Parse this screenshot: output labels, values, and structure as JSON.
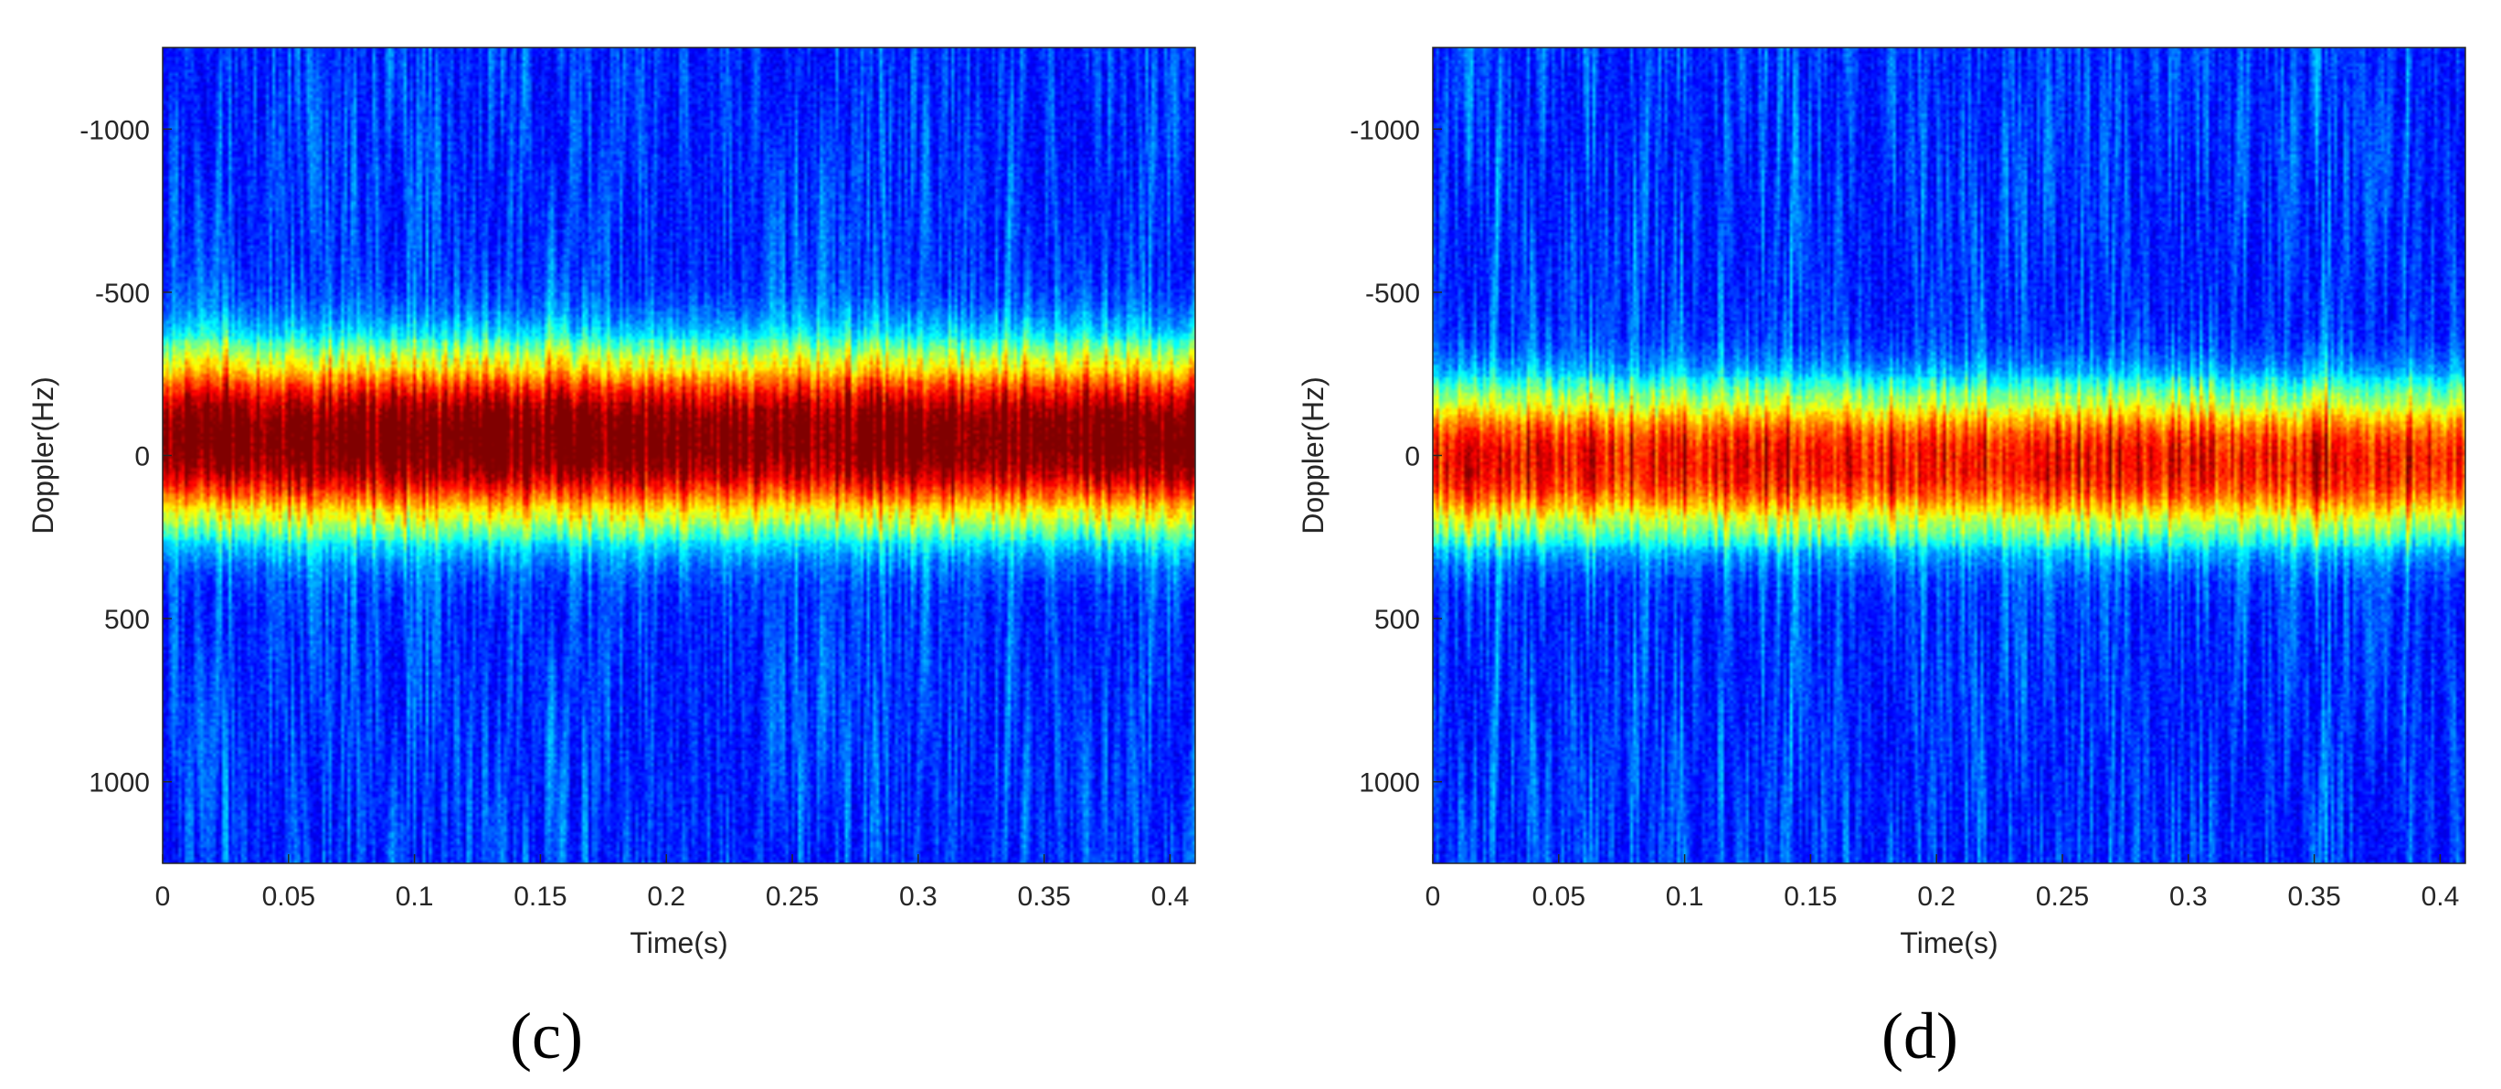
{
  "chart_data": [
    {
      "type": "heatmap",
      "panel_label": "(c)",
      "xlabel": "Time(s)",
      "ylabel": "Doppler(Hz)",
      "xlim": [
        0,
        0.41
      ],
      "ylim": [
        -1250,
        1250
      ],
      "y_reversed": true,
      "x_ticks": [
        0,
        0.05,
        0.1,
        0.15,
        0.2,
        0.25,
        0.3,
        0.35,
        0.4
      ],
      "x_tick_labels": [
        "0",
        "0.05",
        "0.1",
        "0.15",
        "0.2",
        "0.25",
        "0.3",
        "0.35",
        "0.4"
      ],
      "y_ticks": [
        -1000,
        -500,
        0,
        500,
        1000
      ],
      "y_tick_labels": [
        "-1000",
        "-500",
        "0",
        "500",
        "1000"
      ],
      "colormap": "jet",
      "band_center_hz": -50,
      "band_half_width_hz": 310,
      "band_peak_level": 0.95,
      "stripe_pattern": "vertical micro-Doppler striations"
    },
    {
      "type": "heatmap",
      "panel_label": "(d)",
      "xlabel": "Time(s)",
      "ylabel": "Doppler(Hz)",
      "xlim": [
        0,
        0.41
      ],
      "ylim": [
        -1250,
        1250
      ],
      "y_reversed": true,
      "x_ticks": [
        0,
        0.05,
        0.1,
        0.15,
        0.2,
        0.25,
        0.3,
        0.35,
        0.4
      ],
      "x_tick_labels": [
        "0",
        "0.05",
        "0.1",
        "0.15",
        "0.2",
        "0.25",
        "0.3",
        "0.35",
        "0.4"
      ],
      "y_ticks": [
        -1000,
        -500,
        0,
        500,
        1000
      ],
      "y_tick_labels": [
        "-1000",
        "-500",
        "0",
        "500",
        "1000"
      ],
      "colormap": "jet",
      "band_center_hz": 20,
      "band_half_width_hz": 260,
      "band_peak_level": 0.78,
      "stripe_pattern": "vertical micro-Doppler striations"
    }
  ],
  "colors": {
    "jet_dark_blue": "#00008f",
    "jet_blue": "#0000ff",
    "jet_cyan": "#00ffff",
    "jet_yellow": "#ffff00",
    "jet_orange": "#ff8000",
    "jet_red": "#ff0000",
    "axis_text": "#262626"
  }
}
